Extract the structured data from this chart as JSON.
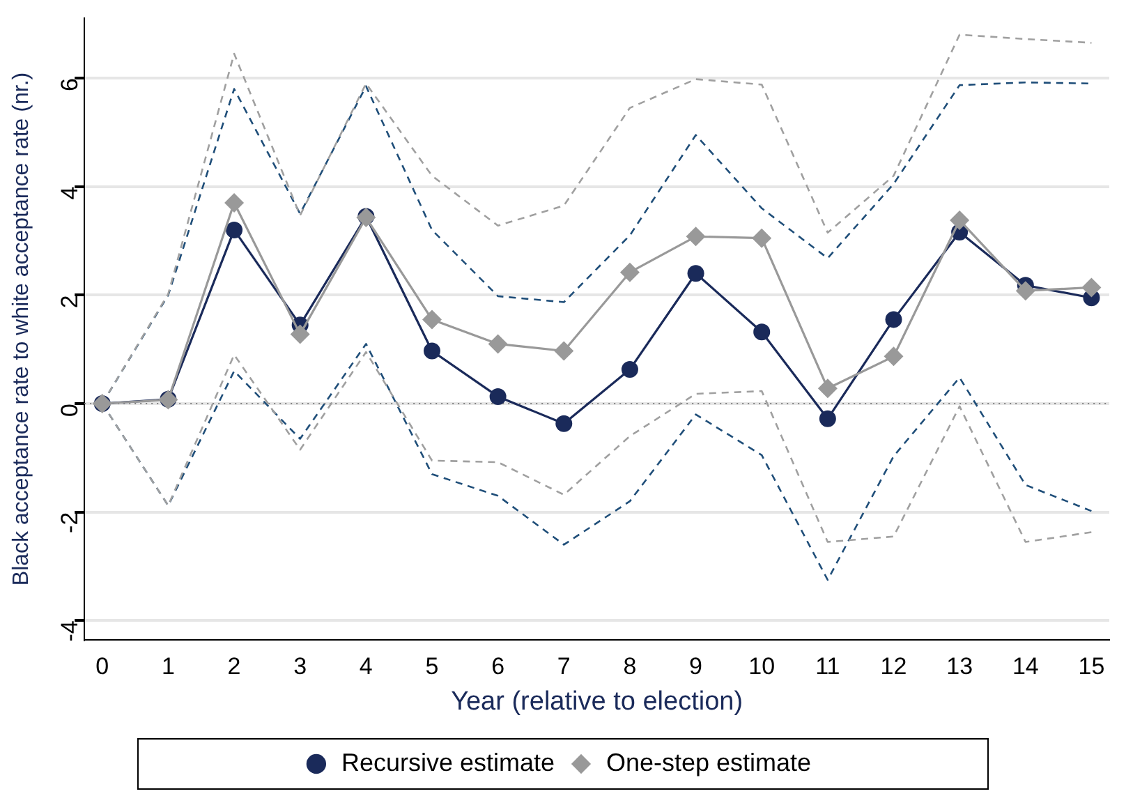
{
  "chart_data": {
    "type": "line",
    "xlabel": "Year (relative to election)",
    "ylabel": "Black acceptance rate to white acceptance rate (nr.)",
    "x": [
      0,
      1,
      2,
      3,
      4,
      5,
      6,
      7,
      8,
      9,
      10,
      11,
      12,
      13,
      14,
      15
    ],
    "xlim": [
      -0.27,
      15.27
    ],
    "xticks": [
      0,
      1,
      2,
      3,
      4,
      5,
      6,
      7,
      8,
      9,
      10,
      11,
      12,
      13,
      14,
      15
    ],
    "ylim": [
      -4.35,
      7.1
    ],
    "yticks": [
      -4,
      -2,
      0,
      2,
      4,
      6
    ],
    "grid": "y",
    "legend": "bottom",
    "line_style": "solid",
    "ref_lines": [
      {
        "axis": "y",
        "value": 0,
        "color": "#808080",
        "line_style": "dotted"
      }
    ],
    "series": [
      {
        "color": "#1f4e79",
        "marker": "none",
        "line_style": "dashed",
        "values": [
          0,
          2.0,
          5.8,
          3.5,
          5.85,
          3.2,
          1.98,
          1.87,
          3.1,
          4.95,
          3.6,
          2.68,
          4.05,
          5.87,
          5.92,
          5.9
        ]
      },
      {
        "color": "#1f4e79",
        "marker": "none",
        "line_style": "dashed",
        "values": [
          0,
          -1.88,
          0.6,
          -0.65,
          1.1,
          -1.3,
          -1.7,
          -2.6,
          -1.8,
          -0.2,
          -0.95,
          -3.25,
          -0.97,
          0.48,
          -1.5,
          -1.98
        ]
      },
      {
        "color": "#a0a0a0",
        "marker": "none",
        "line_style": "dashed",
        "values": [
          0,
          2.02,
          6.45,
          3.47,
          5.9,
          4.2,
          3.28,
          3.65,
          5.45,
          5.98,
          5.88,
          3.15,
          4.2,
          6.8,
          6.72,
          6.65
        ]
      },
      {
        "color": "#a0a0a0",
        "marker": "none",
        "line_style": "dashed",
        "values": [
          0,
          -1.88,
          0.9,
          -0.85,
          0.95,
          -1.05,
          -1.08,
          -1.68,
          -0.6,
          0.18,
          0.23,
          -2.55,
          -2.45,
          -0.05,
          -2.55,
          -2.37
        ]
      },
      {
        "name": "Recursive estimate",
        "color": "#1a2a5a",
        "marker": "circle",
        "values": [
          0,
          0.08,
          3.2,
          1.45,
          3.45,
          0.97,
          0.13,
          -0.37,
          0.63,
          2.4,
          1.32,
          -0.28,
          1.55,
          3.16,
          2.18,
          1.95
        ]
      },
      {
        "name": "One-step estimate",
        "color": "#999999",
        "marker": "diamond",
        "values": [
          0,
          0.07,
          3.7,
          1.28,
          3.43,
          1.55,
          1.1,
          0.97,
          2.42,
          3.08,
          3.05,
          0.28,
          0.87,
          3.38,
          2.08,
          2.14
        ]
      }
    ]
  }
}
